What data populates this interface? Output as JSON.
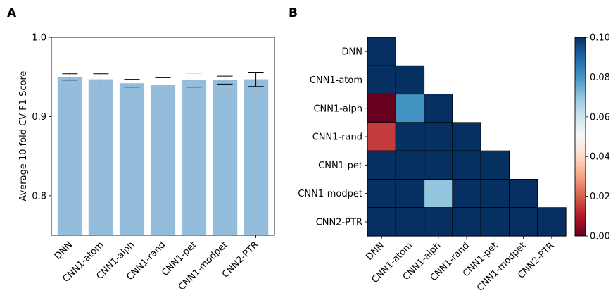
{
  "panels": {
    "a_label": "A",
    "b_label": "B"
  },
  "chart_data": [
    {
      "type": "bar",
      "title": "",
      "xlabel": "",
      "ylabel": "Average 10 fold CV F1 Score",
      "categories": [
        "DNN",
        "CNN1-atom",
        "CNN1-alph",
        "CNN1-rand",
        "CNN1-pet",
        "CNN1-modpet",
        "CNN2-PTR"
      ],
      "values": [
        0.95,
        0.947,
        0.942,
        0.94,
        0.946,
        0.946,
        0.947
      ],
      "errors": [
        0.004,
        0.007,
        0.005,
        0.009,
        0.009,
        0.005,
        0.009
      ],
      "ylim": [
        0.75,
        1.0
      ],
      "yticks": [
        0.8,
        0.9,
        1.0
      ],
      "ytick_labels": [
        "0.8",
        "0.9",
        "1.0"
      ],
      "bar_color": "#93bddb",
      "grid": false
    },
    {
      "type": "heatmap",
      "title": "",
      "rows": [
        "DNN",
        "CNN1-atom",
        "CNN1-alph",
        "CNN1-rand",
        "CNN1-pet",
        "CNN1-modpet",
        "CNN2-PTR"
      ],
      "cols": [
        "DNN",
        "CNN1-atom",
        "CNN1-alph",
        "CNN1-rand",
        "CNN1-pet",
        "CNN1-modpet",
        "CNN2-PTR"
      ],
      "matrix": [
        [
          0.1
        ],
        [
          0.1,
          0.1
        ],
        [
          0.0,
          0.08,
          0.1
        ],
        [
          0.015,
          0.1,
          0.1,
          0.1
        ],
        [
          0.1,
          0.1,
          0.1,
          0.1,
          0.1
        ],
        [
          0.1,
          0.1,
          0.07,
          0.1,
          0.1,
          0.1
        ],
        [
          0.1,
          0.1,
          0.1,
          0.1,
          0.1,
          0.1,
          0.1
        ]
      ],
      "vmin": 0.0,
      "vmax": 0.1,
      "colormap": "RdBu",
      "colorbar_ticks": [
        0.0,
        0.02,
        0.04,
        0.06,
        0.08,
        0.1
      ],
      "colorbar_labels": [
        "0.00",
        "0.02",
        "0.04",
        "0.06",
        "0.08",
        "0.10"
      ]
    }
  ]
}
